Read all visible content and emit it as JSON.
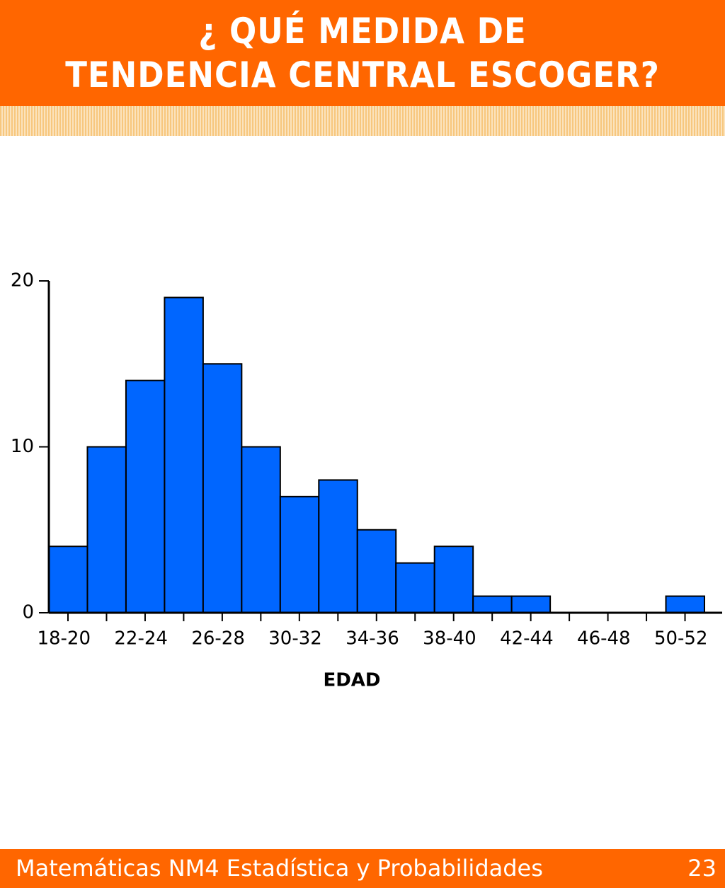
{
  "header": {
    "title_lines": [
      "¿ QUÉ MEDIDA DE",
      "TENDENCIA CENTRAL ESCOGER?"
    ]
  },
  "chart_data": {
    "type": "bar",
    "categories": [
      "18-20",
      null,
      "22-24",
      null,
      "26-28",
      null,
      "30-32",
      null,
      "34-36",
      null,
      "38-40",
      null,
      "42-44",
      null,
      "46-48",
      null,
      "50-52"
    ],
    "values": [
      4,
      10,
      14,
      19,
      15,
      10,
      7,
      8,
      5,
      3,
      4,
      1,
      1,
      0,
      0,
      0,
      1
    ],
    "color": "#0066ff",
    "xlabel": "EDAD",
    "ylim": [
      0,
      20
    ],
    "yticks": [
      0,
      10,
      20
    ],
    "grid": false
  },
  "footer": {
    "text": "Matemáticas NM4  Estadística y Probabilidades",
    "page": "23"
  }
}
